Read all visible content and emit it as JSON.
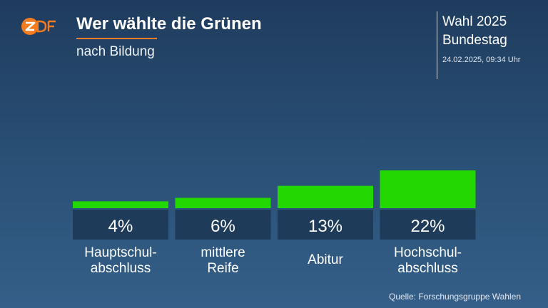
{
  "header": {
    "title": "Wer wählte die Grünen",
    "subtitle": "nach Bildung",
    "info_line1": "Wahl 2025",
    "info_line2": "Bundestag",
    "timestamp": "24.02.2025, 09:34 Uhr"
  },
  "logo": {
    "text": "ZDF",
    "icon": "zdf-logo-icon",
    "color": "#f47c20"
  },
  "footer": {
    "source": "Quelle: Forschungsgruppe Wahlen"
  },
  "colors": {
    "bar": "#22d800",
    "label_box": "#1e3b5a",
    "accent": "#f47c20"
  },
  "chart_data": {
    "type": "bar",
    "title": "Wer wählte die Grünen",
    "subtitle": "nach Bildung",
    "categories": [
      [
        "Hauptschul-",
        "abschluss"
      ],
      [
        "mittlere",
        "Reife"
      ],
      [
        "Abitur"
      ],
      [
        "Hochschul-",
        "abschluss"
      ]
    ],
    "values": [
      4,
      6,
      13,
      22
    ],
    "value_labels": [
      "4%",
      "6%",
      "13%",
      "22%"
    ],
    "unit": "%",
    "ylim": [
      0,
      22
    ],
    "grid": false,
    "legend": false
  }
}
